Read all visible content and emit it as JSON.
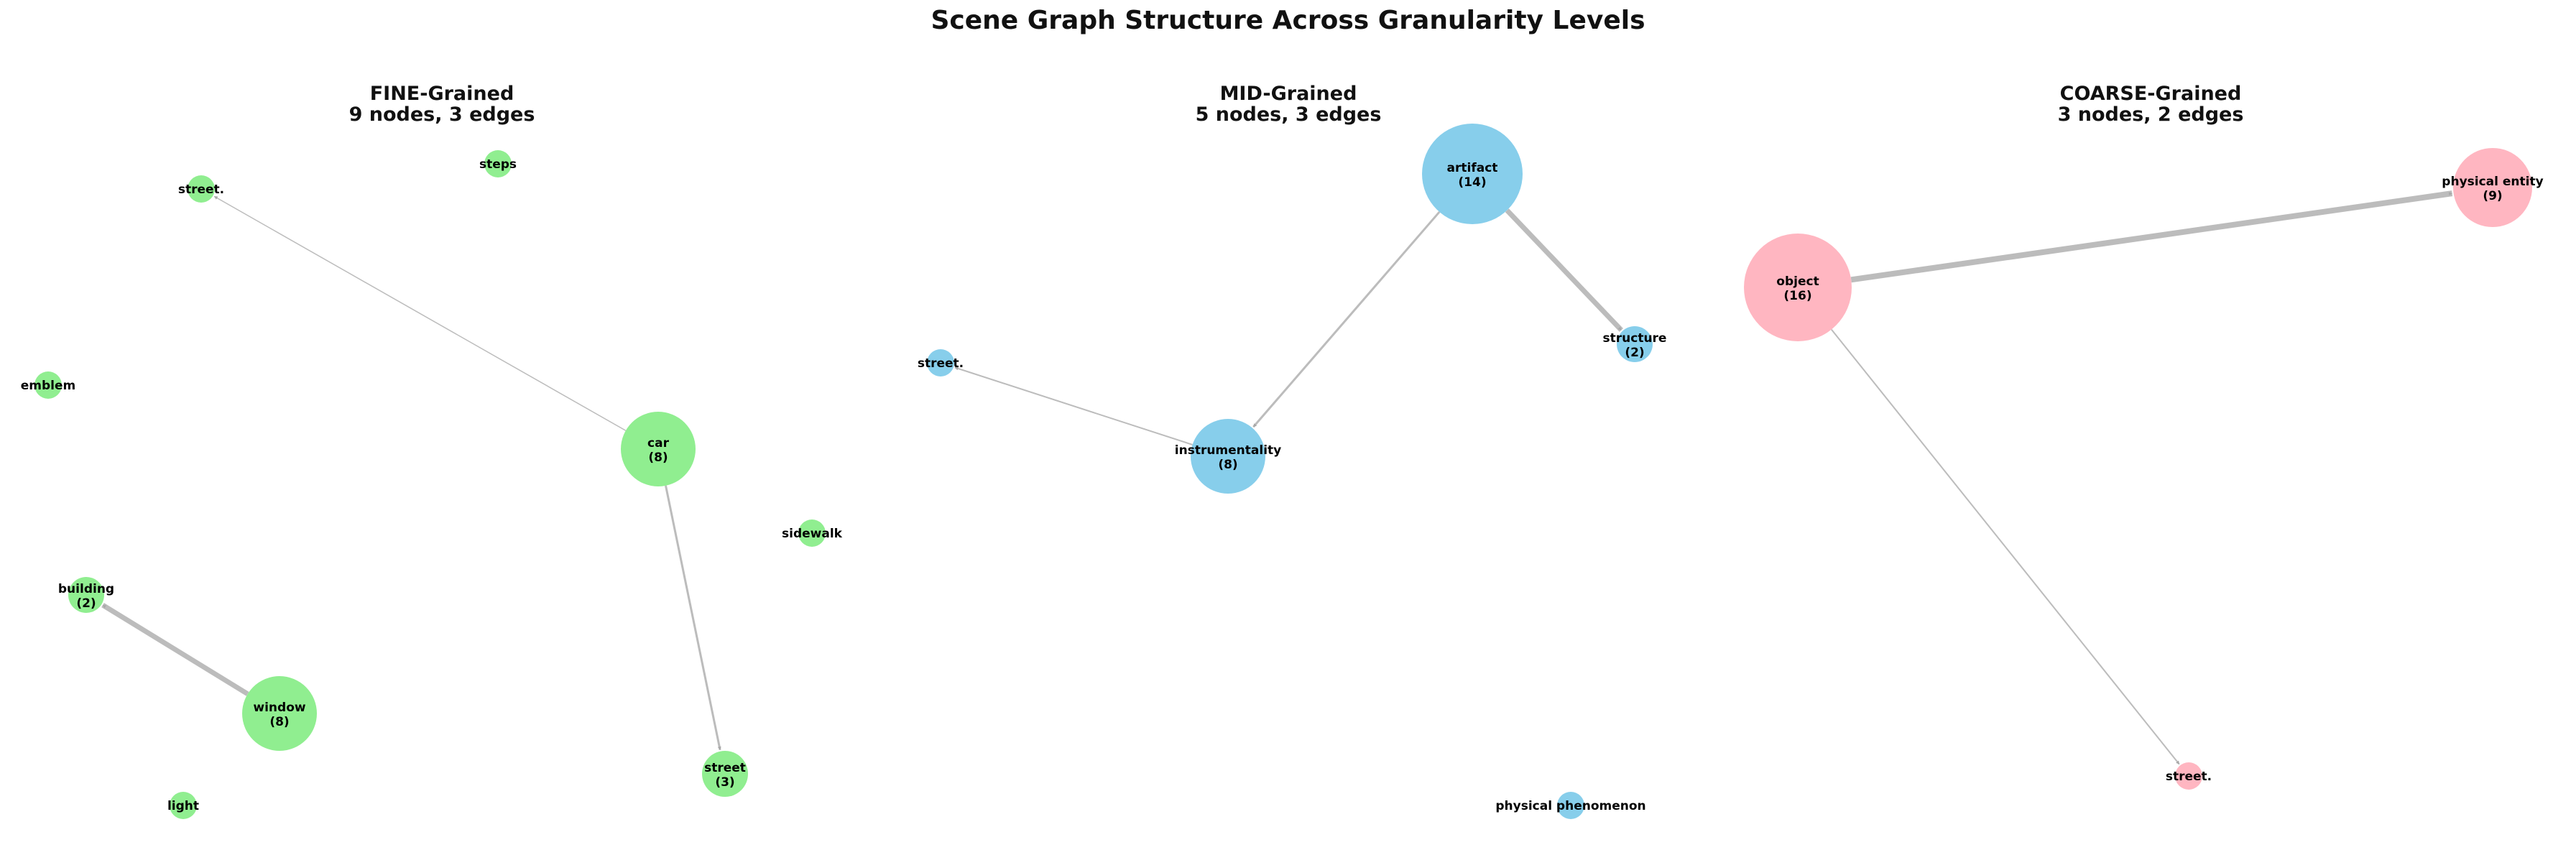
{
  "title": "Scene Graph Structure Across Granularity Levels",
  "colors": {
    "fine": "#90EE90",
    "mid": "#87CEEB",
    "coarse": "#FFB6C1",
    "edge": "#b0b0b0"
  },
  "panels": [
    {
      "id": "fine",
      "title": "FINE-Grained",
      "subtitle": "9 nodes, 3 edges",
      "nodes": [
        {
          "id": "street_dot",
          "label": "street.",
          "count": ""
        },
        {
          "id": "steps",
          "label": "steps",
          "count": ""
        },
        {
          "id": "emblem",
          "label": "emblem",
          "count": ""
        },
        {
          "id": "car",
          "label": "car",
          "count": "(8)"
        },
        {
          "id": "sidewalk",
          "label": "sidewalk",
          "count": ""
        },
        {
          "id": "building",
          "label": "building",
          "count": "(2)"
        },
        {
          "id": "window",
          "label": "window",
          "count": "(8)"
        },
        {
          "id": "street",
          "label": "street",
          "count": "(3)"
        },
        {
          "id": "light",
          "label": "light",
          "count": ""
        }
      ],
      "edges": [
        {
          "from": "car",
          "to": "street_dot"
        },
        {
          "from": "car",
          "to": "street"
        },
        {
          "from": "window",
          "to": "building"
        }
      ]
    },
    {
      "id": "mid",
      "title": "MID-Grained",
      "subtitle": "5 nodes, 3 edges",
      "nodes": [
        {
          "id": "artifact",
          "label": "artifact",
          "count": "(14)"
        },
        {
          "id": "structure",
          "label": "structure",
          "count": "(2)"
        },
        {
          "id": "street_dot",
          "label": "street.",
          "count": ""
        },
        {
          "id": "instrumentality",
          "label": "instrumentality",
          "count": "(8)"
        },
        {
          "id": "physical_phenomenon",
          "label": "physical phenomenon",
          "count": ""
        }
      ],
      "edges": [
        {
          "from": "artifact",
          "to": "structure"
        },
        {
          "from": "artifact",
          "to": "instrumentality"
        },
        {
          "from": "instrumentality",
          "to": "street_dot"
        }
      ]
    },
    {
      "id": "coarse",
      "title": "COARSE-Grained",
      "subtitle": "3 nodes, 2 edges",
      "nodes": [
        {
          "id": "object",
          "label": "object",
          "count": "(16)"
        },
        {
          "id": "physical_entity",
          "label": "physical entity",
          "count": "(9)"
        },
        {
          "id": "street_dot",
          "label": "street.",
          "count": ""
        }
      ],
      "edges": [
        {
          "from": "object",
          "to": "physical_entity"
        },
        {
          "from": "object",
          "to": "street_dot"
        }
      ]
    }
  ]
}
